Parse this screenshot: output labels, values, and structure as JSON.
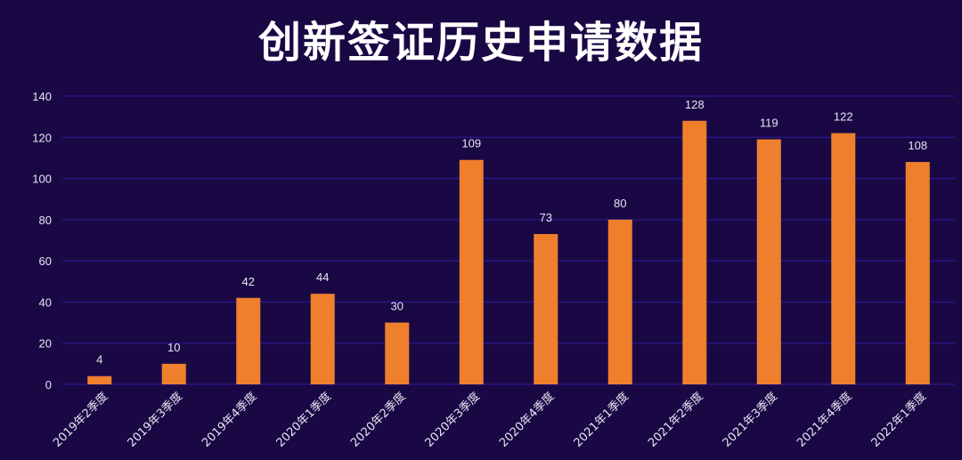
{
  "chart_data": {
    "type": "bar",
    "title": "创新签证历史申请数据",
    "categories": [
      "2019年2季度",
      "2019年3季度",
      "2019年4季度",
      "2020年1季度",
      "2020年2季度",
      "2020年3季度",
      "2020年4季度",
      "2021年1季度",
      "2021年2季度",
      "2021年3季度",
      "2021年4季度",
      "2022年1季度"
    ],
    "values": [
      4,
      10,
      42,
      44,
      30,
      109,
      73,
      80,
      128,
      119,
      122,
      108
    ],
    "ylim": [
      0,
      140
    ],
    "yticks": [
      0,
      20,
      40,
      60,
      80,
      100,
      120,
      140
    ],
    "grid": true,
    "xlabel": "",
    "ylabel": ""
  },
  "colors": {
    "background": "#1a0845",
    "bar": "#ee7f2d",
    "grid": "#2e1a9e",
    "text": "#e6e6f0"
  }
}
